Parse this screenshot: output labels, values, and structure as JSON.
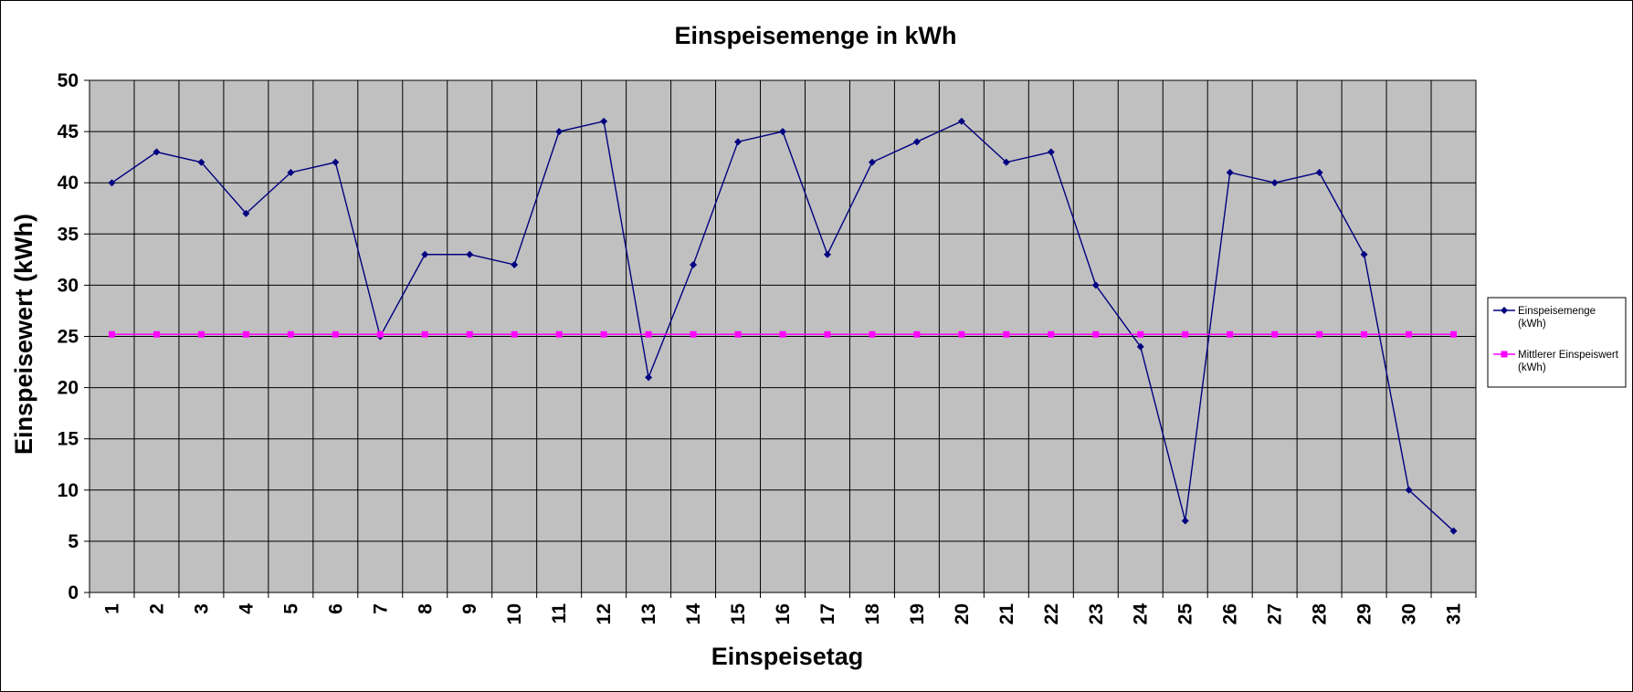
{
  "chart_data": {
    "type": "line",
    "title": "Einspeisemenge in kWh",
    "xlabel": "Einspeisetag",
    "ylabel": "Einspeisewert  (kWh)",
    "categories": [
      "1",
      "2",
      "3",
      "4",
      "5",
      "6",
      "7",
      "8",
      "9",
      "10",
      "11",
      "12",
      "13",
      "14",
      "15",
      "16",
      "17",
      "18",
      "19",
      "20",
      "21",
      "22",
      "23",
      "24",
      "25",
      "26",
      "27",
      "28",
      "29",
      "30",
      "31"
    ],
    "ylim": [
      0,
      50
    ],
    "yticks": [
      "0",
      "5",
      "10",
      "15",
      "20",
      "25",
      "30",
      "35",
      "40",
      "45",
      "50"
    ],
    "grid": true,
    "legend_position": "right",
    "series": [
      {
        "name_lines": [
          "Einspeisemenge",
          "(kWh)"
        ],
        "color": "#000080",
        "marker": "diamond",
        "values": [
          40,
          43,
          42,
          37,
          41,
          42,
          25,
          33,
          33,
          32,
          45,
          46,
          21,
          32,
          44,
          45,
          33,
          42,
          44,
          46,
          42,
          43,
          30,
          24,
          7,
          41,
          40,
          41,
          33,
          10,
          6
        ]
      },
      {
        "name_lines": [
          "Mittlerer Einspeiswert",
          "(kWh)"
        ],
        "color": "#FF00FF",
        "marker": "square",
        "values": [
          25.2,
          25.2,
          25.2,
          25.2,
          25.2,
          25.2,
          25.2,
          25.2,
          25.2,
          25.2,
          25.2,
          25.2,
          25.2,
          25.2,
          25.2,
          25.2,
          25.2,
          25.2,
          25.2,
          25.2,
          25.2,
          25.2,
          25.2,
          25.2,
          25.2,
          25.2,
          25.2,
          25.2,
          25.2,
          25.2,
          25.2
        ]
      }
    ],
    "plot_background": "#C0C0C0"
  }
}
